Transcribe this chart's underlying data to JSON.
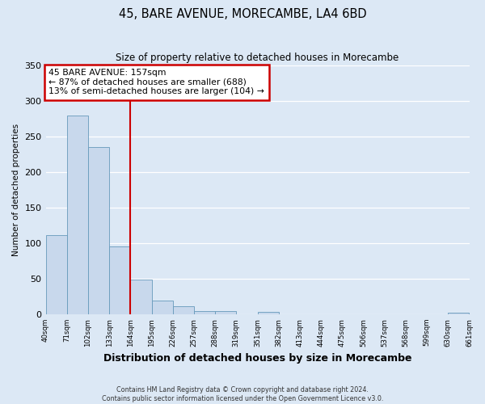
{
  "title": "45, BARE AVENUE, MORECAMBE, LA4 6BD",
  "subtitle": "Size of property relative to detached houses in Morecambe",
  "xlabel": "Distribution of detached houses by size in Morecambe",
  "ylabel": "Number of detached properties",
  "bar_values": [
    111,
    279,
    235,
    95,
    49,
    19,
    11,
    5,
    5,
    0,
    3,
    0,
    0,
    0,
    0,
    0,
    0,
    0,
    0,
    2
  ],
  "tick_labels": [
    "40sqm",
    "71sqm",
    "102sqm",
    "133sqm",
    "164sqm",
    "195sqm",
    "226sqm",
    "257sqm",
    "288sqm",
    "319sqm",
    "351sqm",
    "382sqm",
    "413sqm",
    "444sqm",
    "475sqm",
    "506sqm",
    "537sqm",
    "568sqm",
    "599sqm",
    "630sqm",
    "661sqm"
  ],
  "bar_color": "#c8d8ec",
  "bar_edge_color": "#6699bb",
  "vline_x": 4,
  "vline_color": "#cc0000",
  "annotation_title": "45 BARE AVENUE: 157sqm",
  "annotation_line1": "← 87% of detached houses are smaller (688)",
  "annotation_line2": "13% of semi-detached houses are larger (104) →",
  "annotation_box_color": "#cc0000",
  "ylim": [
    0,
    350
  ],
  "yticks": [
    0,
    50,
    100,
    150,
    200,
    250,
    300,
    350
  ],
  "footer1": "Contains HM Land Registry data © Crown copyright and database right 2024.",
  "footer2": "Contains public sector information licensed under the Open Government Licence v3.0.",
  "bg_color": "#dce8f5",
  "plot_bg_color": "#dce8f5",
  "grid_color": "#ffffff"
}
